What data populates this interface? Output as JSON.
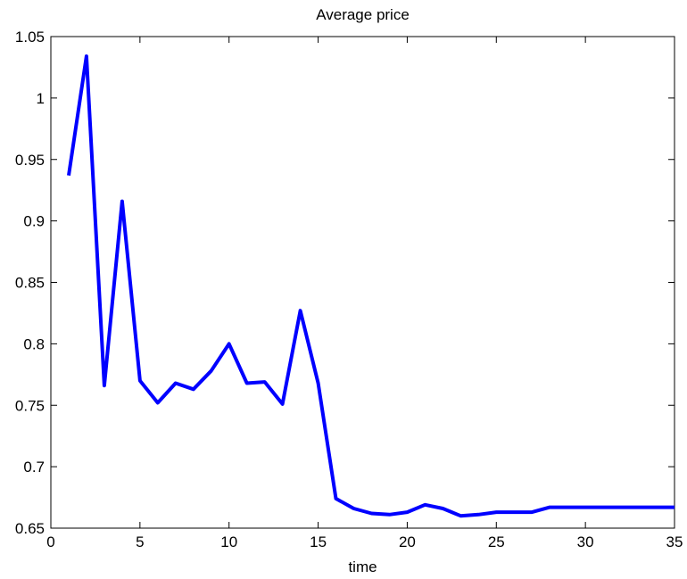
{
  "chart_data": {
    "type": "line",
    "title": "Average price",
    "xlabel": "time",
    "ylabel": "",
    "xlim": [
      0,
      35
    ],
    "ylim": [
      0.65,
      1.05
    ],
    "xticks": [
      "0",
      "5",
      "10",
      "15",
      "20",
      "25",
      "30",
      "35"
    ],
    "yticks": [
      "0.65",
      "0.7",
      "0.75",
      "0.8",
      "0.85",
      "0.9",
      "0.95",
      "1",
      "1.05"
    ],
    "grid": false,
    "series": [
      {
        "color": "#0000ff",
        "x": [
          1,
          2,
          3,
          4,
          5,
          6,
          7,
          8,
          9,
          10,
          11,
          12,
          13,
          14,
          15,
          16,
          17,
          18,
          19,
          20,
          21,
          22,
          23,
          24,
          25,
          26,
          27,
          28,
          29,
          30,
          31,
          32,
          33,
          34,
          35
        ],
        "y": [
          0.937,
          1.034,
          0.766,
          0.916,
          0.77,
          0.752,
          0.768,
          0.763,
          0.778,
          0.8,
          0.768,
          0.769,
          0.751,
          0.827,
          0.768,
          0.674,
          0.666,
          0.662,
          0.661,
          0.663,
          0.669,
          0.666,
          0.66,
          0.661,
          0.663,
          0.663,
          0.663,
          0.667,
          0.667,
          0.667,
          0.667,
          0.667,
          0.667,
          0.667,
          0.667
        ]
      }
    ]
  }
}
